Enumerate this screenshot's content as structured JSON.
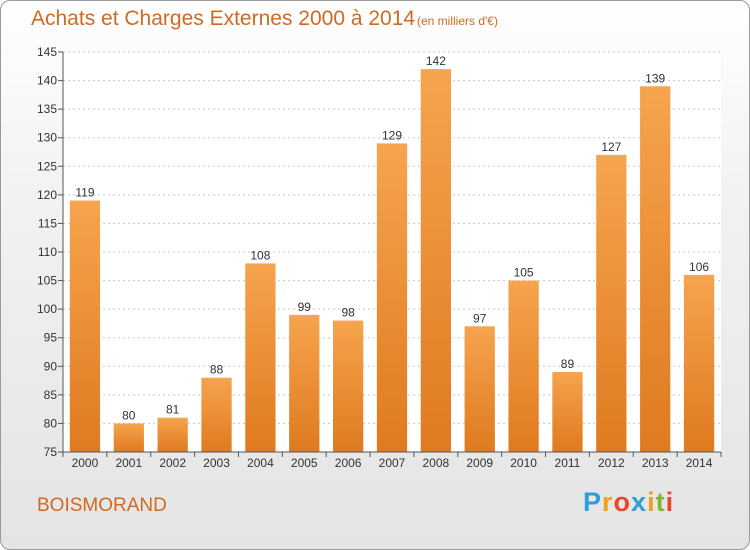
{
  "chart_data": {
    "type": "bar",
    "title": "Achats et Charges Externes 2000 à 2014",
    "subtitle": "(en milliers d'€)",
    "categories": [
      "2000",
      "2001",
      "2002",
      "2003",
      "2004",
      "2005",
      "2006",
      "2007",
      "2008",
      "2009",
      "2010",
      "2011",
      "2012",
      "2013",
      "2014"
    ],
    "values": [
      119,
      80,
      81,
      88,
      108,
      99,
      98,
      129,
      142,
      97,
      105,
      89,
      127,
      139,
      106
    ],
    "ylim": [
      75,
      145
    ],
    "yticks": [
      75,
      80,
      85,
      90,
      95,
      100,
      105,
      110,
      115,
      120,
      125,
      130,
      135,
      140,
      145
    ],
    "grid": true,
    "bar_color": "#f0963a",
    "xlabel": "",
    "ylabel": ""
  },
  "commune": "BOISMORAND",
  "logo": {
    "letters": [
      "P",
      "r",
      "o",
      "x",
      "i",
      "t",
      "i"
    ],
    "colors": [
      "#2e9fd8",
      "#f3a01a",
      "#e9462f",
      "#2e9fd8",
      "#f3a01a",
      "#7cb82f",
      "#e9462f"
    ]
  }
}
